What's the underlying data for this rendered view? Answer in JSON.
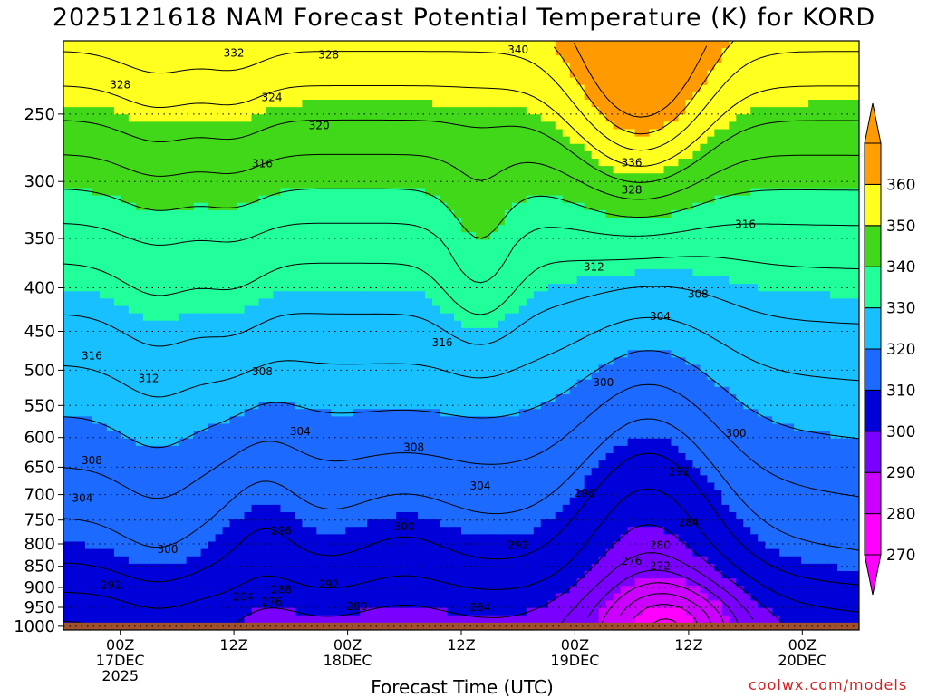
{
  "chart_data": {
    "type": "heatmap",
    "title": "2025121618 NAM Forecast Potential Temperature (K) for KORD",
    "xlabel": "Forecast Time (UTC)",
    "ylabel": "",
    "y_scale": "log-pressure (hPa)",
    "y_ticks": [
      250,
      300,
      350,
      400,
      450,
      500,
      550,
      600,
      650,
      700,
      750,
      800,
      850,
      900,
      950,
      1000
    ],
    "ylim": [
      1010,
      205
    ],
    "x_ticks": [
      {
        "time_h": 6,
        "lines": [
          "00Z",
          "17DEC",
          "2025"
        ]
      },
      {
        "time_h": 18,
        "lines": [
          "12Z"
        ]
      },
      {
        "time_h": 30,
        "lines": [
          "00Z",
          "18DEC"
        ]
      },
      {
        "time_h": 42,
        "lines": [
          "12Z"
        ]
      },
      {
        "time_h": 54,
        "lines": [
          "00Z",
          "19DEC"
        ]
      },
      {
        "time_h": 66,
        "lines": [
          "12Z"
        ]
      },
      {
        "time_h": 78,
        "lines": [
          "00Z",
          "20DEC"
        ]
      }
    ],
    "xlim": [
      0,
      84
    ],
    "colorbar": {
      "levels": [
        270,
        280,
        290,
        300,
        310,
        320,
        330,
        340,
        350,
        360
      ],
      "labels": [
        "270",
        "280",
        "290",
        "300",
        "310",
        "320",
        "330",
        "340",
        "350",
        "360"
      ],
      "colors": [
        "#ff00ff",
        "#cc00ff",
        "#7a00ff",
        "#0000d8",
        "#1c6aff",
        "#19c0ff",
        "#20ff9a",
        "#40d818",
        "#ffff20",
        "#ffa000"
      ],
      "extend": "both",
      "low_color": "#ff00ff",
      "high_color": "#ff9a00"
    },
    "ground_color": "#a0522d",
    "contour_interval_K": 4,
    "contour_labels": [
      {
        "value": "332",
        "time_h": 18,
        "p": 212
      },
      {
        "value": "328",
        "time_h": 28,
        "p": 213
      },
      {
        "value": "340",
        "time_h": 48,
        "p": 210
      },
      {
        "value": "328",
        "time_h": 6,
        "p": 231
      },
      {
        "value": "324",
        "time_h": 22,
        "p": 239
      },
      {
        "value": "320",
        "time_h": 27,
        "p": 258
      },
      {
        "value": "316",
        "time_h": 21,
        "p": 286
      },
      {
        "value": "336",
        "time_h": 60,
        "p": 285
      },
      {
        "value": "328",
        "time_h": 60,
        "p": 307
      },
      {
        "value": "316",
        "time_h": 72,
        "p": 337
      },
      {
        "value": "312",
        "time_h": 56,
        "p": 378
      },
      {
        "value": "308",
        "time_h": 67,
        "p": 407
      },
      {
        "value": "304",
        "time_h": 63,
        "p": 432
      },
      {
        "value": "316",
        "time_h": 40,
        "p": 464
      },
      {
        "value": "316",
        "time_h": 3,
        "p": 481
      },
      {
        "value": "312",
        "time_h": 9,
        "p": 511
      },
      {
        "value": "308",
        "time_h": 21,
        "p": 502
      },
      {
        "value": "300",
        "time_h": 57,
        "p": 517
      },
      {
        "value": "304",
        "time_h": 25,
        "p": 590
      },
      {
        "value": "308",
        "time_h": 37,
        "p": 616
      },
      {
        "value": "300",
        "time_h": 71,
        "p": 593
      },
      {
        "value": "308",
        "time_h": 3,
        "p": 638
      },
      {
        "value": "292",
        "time_h": 65,
        "p": 658
      },
      {
        "value": "304",
        "time_h": 44,
        "p": 684
      },
      {
        "value": "296",
        "time_h": 55,
        "p": 697
      },
      {
        "value": "304",
        "time_h": 2,
        "p": 707
      },
      {
        "value": "284",
        "time_h": 66,
        "p": 755
      },
      {
        "value": "296",
        "time_h": 23,
        "p": 772
      },
      {
        "value": "300",
        "time_h": 36,
        "p": 764
      },
      {
        "value": "280",
        "time_h": 63,
        "p": 803
      },
      {
        "value": "300",
        "time_h": 11,
        "p": 812
      },
      {
        "value": "292",
        "time_h": 48,
        "p": 803
      },
      {
        "value": "276",
        "time_h": 60,
        "p": 838
      },
      {
        "value": "272",
        "time_h": 63,
        "p": 850
      },
      {
        "value": "292",
        "time_h": 5,
        "p": 895
      },
      {
        "value": "292",
        "time_h": 28,
        "p": 892
      },
      {
        "value": "288",
        "time_h": 23,
        "p": 905
      },
      {
        "value": "284",
        "time_h": 19,
        "p": 924
      },
      {
        "value": "276",
        "time_h": 22,
        "p": 936
      },
      {
        "value": "280",
        "time_h": 31,
        "p": 948
      },
      {
        "value": "284",
        "time_h": 44,
        "p": 950
      }
    ],
    "grid": true
  },
  "footer": {
    "credit": "coolwx.com/models"
  }
}
